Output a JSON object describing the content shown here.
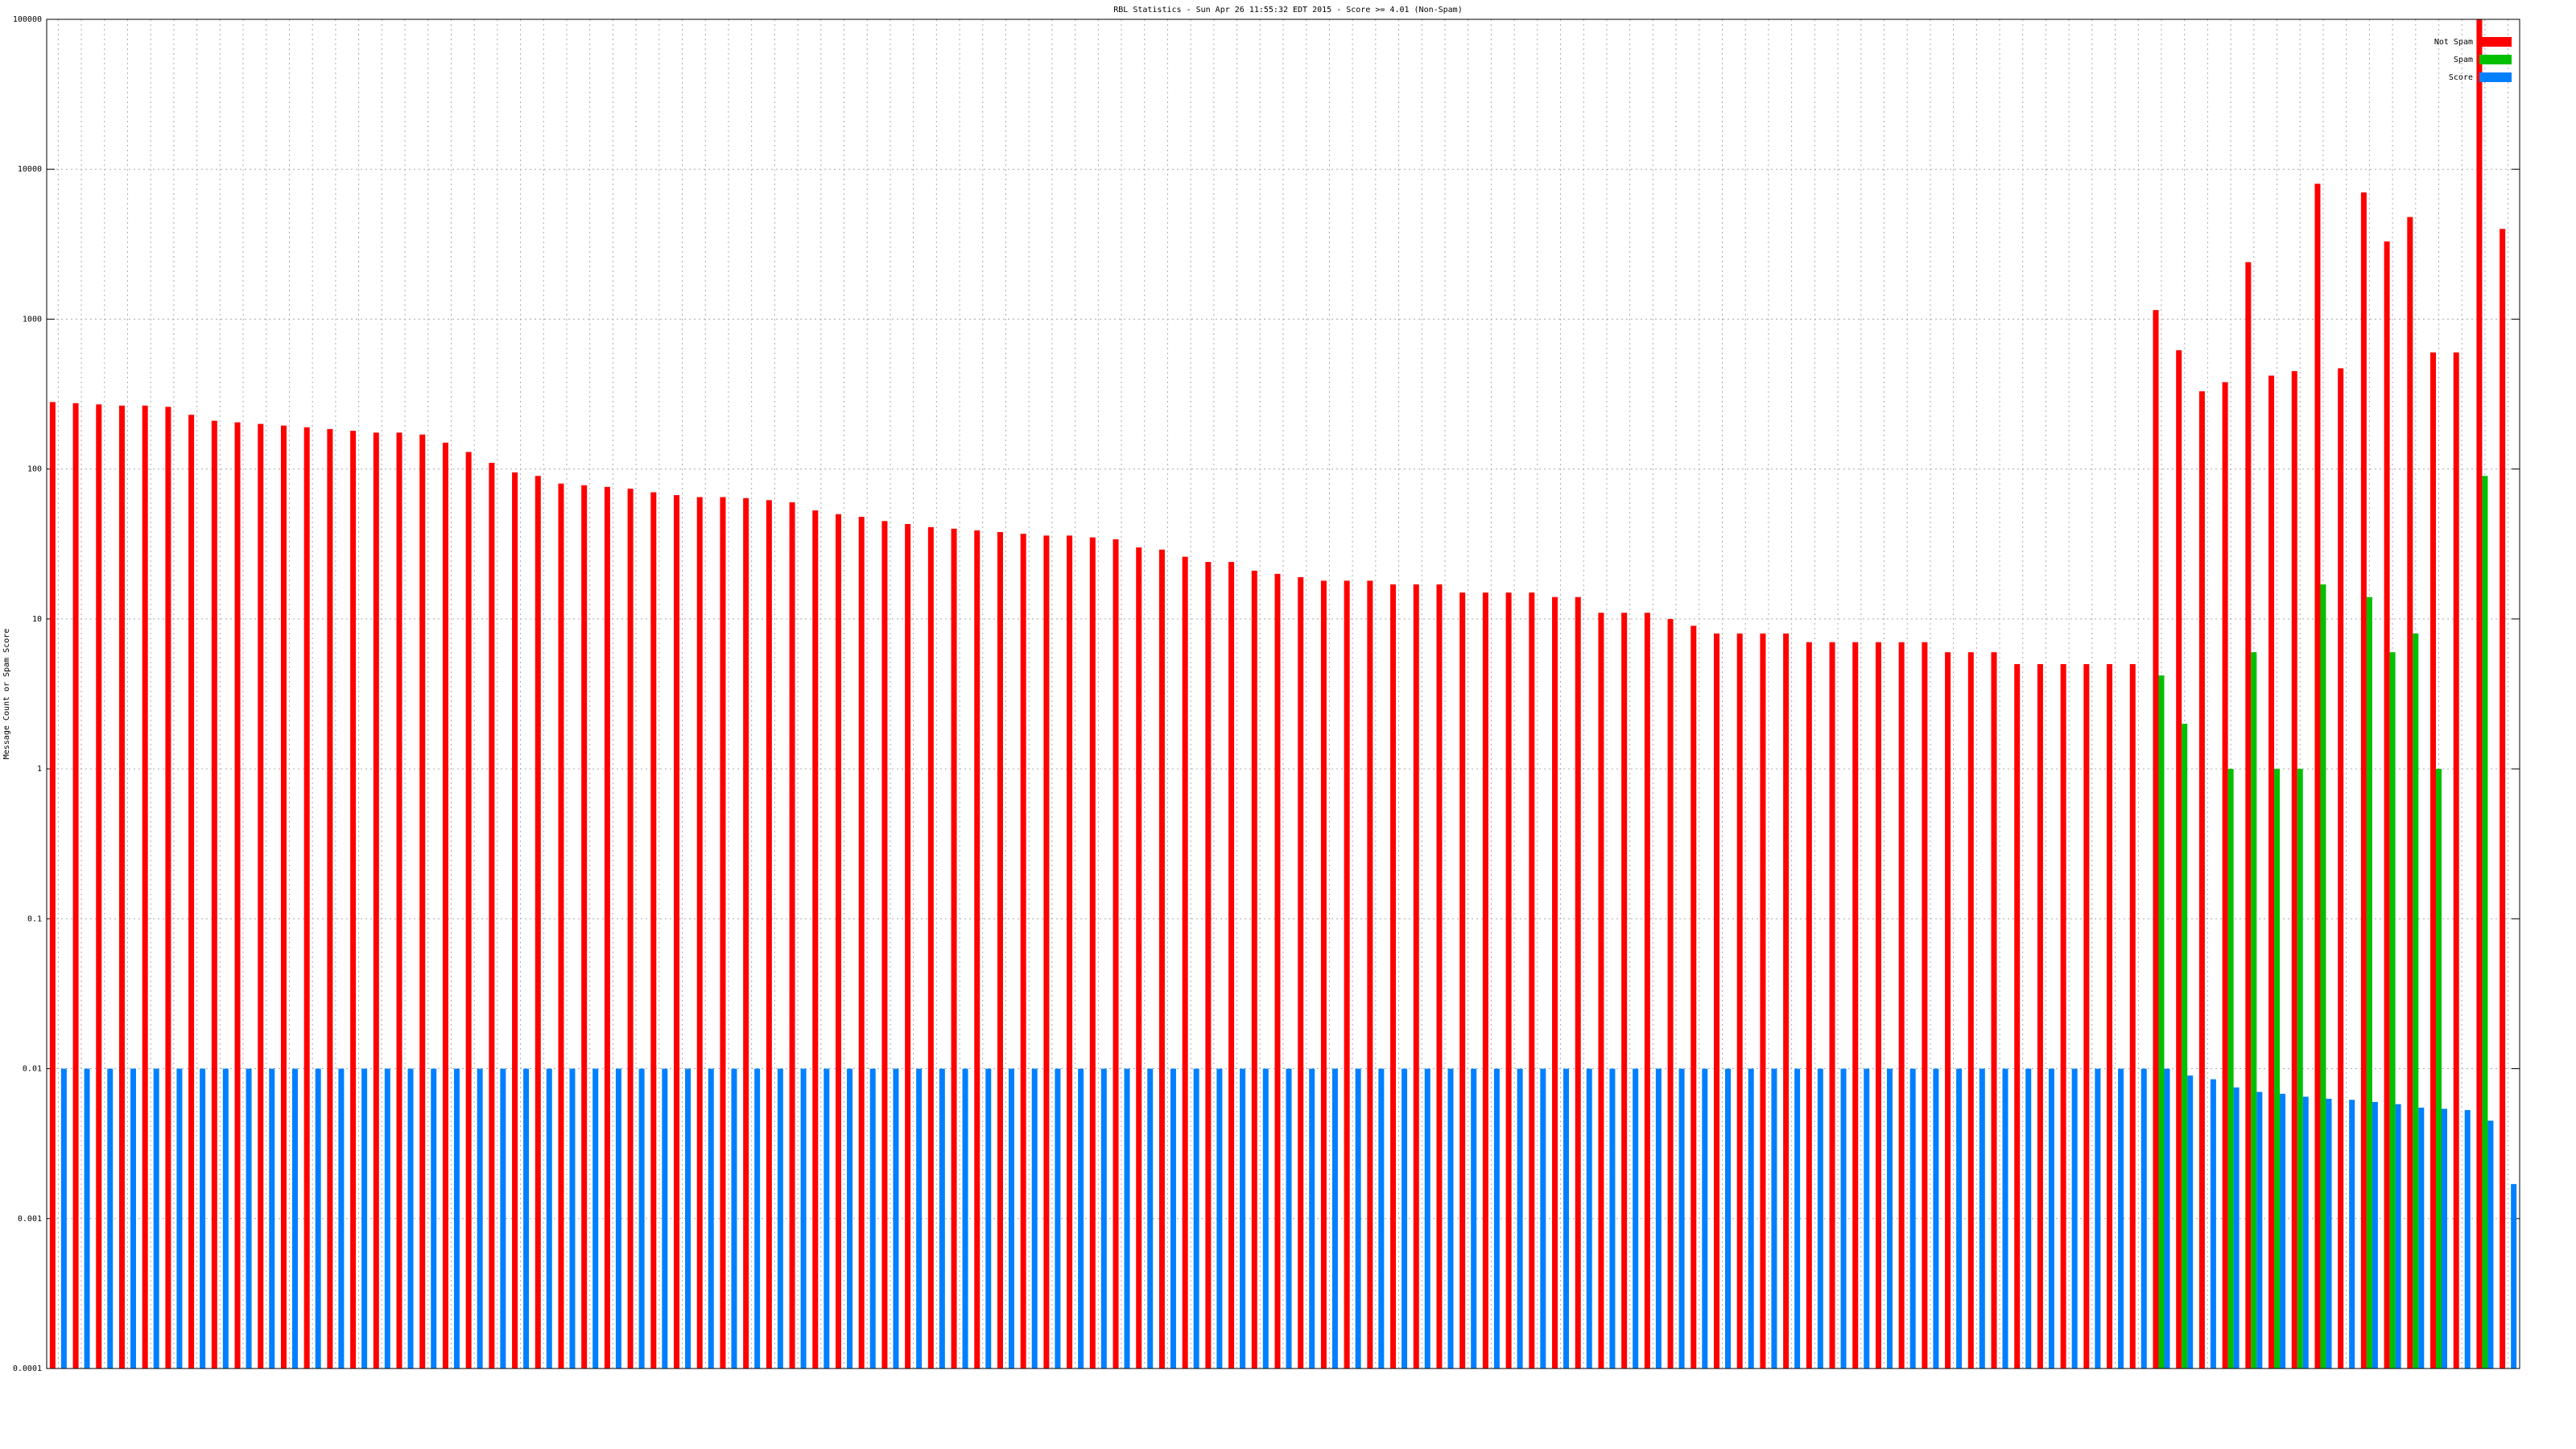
{
  "chart_data": {
    "type": "bar",
    "title": "RBL Statistics - Sun Apr 26 11:55:32 EDT 2015 - Score >= 4.01 (Non-Spam)",
    "ylabel": "Message Count or Spam Score",
    "log_scale": true,
    "grid": true,
    "legend": "upper right",
    "ylim": [
      0.0001,
      100000
    ],
    "yticks": [
      0.0001,
      0.001,
      0.01,
      0.1,
      1,
      10,
      100,
      1000,
      10000,
      100000
    ],
    "categories": [
      null,
      null,
      null,
      null,
      null,
      null,
      null,
      null,
      null,
      null,
      null,
      null,
      null,
      null,
      null,
      null,
      null,
      null,
      null,
      null,
      null,
      null,
      null,
      null,
      null,
      null,
      null,
      null,
      null,
      null,
      null,
      null,
      null,
      null,
      null,
      null,
      null,
      null,
      null,
      null,
      null,
      null,
      null,
      null,
      null,
      null,
      null,
      null,
      null,
      null,
      null,
      null,
      null,
      null,
      null,
      null,
      null,
      null,
      null,
      null,
      null,
      null,
      null,
      null,
      null,
      null,
      null,
      null,
      null,
      null,
      null,
      null,
      null,
      null,
      null,
      null,
      null,
      null,
      null,
      null,
      null,
      null,
      null,
      null,
      null,
      null,
      null,
      null,
      null,
      null,
      null,
      null,
      null,
      null,
      null,
      null,
      null,
      null,
      null,
      null,
      null,
      null,
      null,
      null,
      null,
      null,
      null
    ],
    "series": [
      {
        "name": "Not Spam",
        "color": "#ff0000",
        "values": [
          280,
          275,
          270,
          265,
          265,
          260,
          230,
          210,
          205,
          200,
          195,
          190,
          185,
          180,
          175,
          175,
          170,
          150,
          130,
          110,
          95,
          90,
          80,
          78,
          76,
          74,
          70,
          67,
          65,
          65,
          64,
          62,
          60,
          53,
          50,
          48,
          45,
          43,
          41,
          40,
          39,
          38,
          37,
          36,
          36,
          35,
          34,
          30,
          29,
          26,
          24,
          24,
          21,
          20,
          19,
          18,
          18,
          18,
          17,
          17,
          17,
          15,
          15,
          15,
          15,
          14,
          14,
          11,
          11,
          11,
          10,
          9,
          8,
          8,
          8,
          8,
          7,
          7,
          7,
          7,
          7,
          7,
          6,
          6,
          6,
          5,
          5,
          5,
          5,
          5,
          5,
          1150,
          620,
          330,
          380,
          2400,
          420,
          450,
          8000,
          470,
          7000,
          3300,
          4800,
          600,
          600,
          100000,
          4000
        ]
      },
      {
        "name": "Spam",
        "color": "#00c000",
        "values": [
          null,
          null,
          null,
          null,
          null,
          null,
          null,
          null,
          null,
          null,
          null,
          null,
          null,
          null,
          null,
          null,
          null,
          null,
          null,
          null,
          null,
          null,
          null,
          null,
          null,
          null,
          null,
          null,
          null,
          null,
          null,
          null,
          null,
          null,
          null,
          null,
          null,
          null,
          null,
          null,
          null,
          null,
          null,
          null,
          null,
          null,
          null,
          null,
          null,
          null,
          null,
          null,
          null,
          null,
          null,
          null,
          null,
          null,
          null,
          null,
          null,
          null,
          null,
          null,
          null,
          null,
          null,
          null,
          null,
          null,
          null,
          null,
          null,
          null,
          null,
          null,
          null,
          null,
          null,
          null,
          null,
          null,
          null,
          null,
          null,
          null,
          null,
          null,
          null,
          null,
          null,
          4.2,
          2,
          null,
          1,
          6,
          1,
          1,
          17,
          null,
          14,
          6,
          8,
          1,
          null,
          90,
          null
        ]
      },
      {
        "name": "Score",
        "color": "#0080ff",
        "values": [
          0.01,
          0.01,
          0.01,
          0.01,
          0.01,
          0.01,
          0.01,
          0.01,
          0.01,
          0.01,
          0.01,
          0.01,
          0.01,
          0.01,
          0.01,
          0.01,
          0.01,
          0.01,
          0.01,
          0.01,
          0.01,
          0.01,
          0.01,
          0.01,
          0.01,
          0.01,
          0.01,
          0.01,
          0.01,
          0.01,
          0.01,
          0.01,
          0.01,
          0.01,
          0.01,
          0.01,
          0.01,
          0.01,
          0.01,
          0.01,
          0.01,
          0.01,
          0.01,
          0.01,
          0.01,
          0.01,
          0.01,
          0.01,
          0.01,
          0.01,
          0.01,
          0.01,
          0.01,
          0.01,
          0.01,
          0.01,
          0.01,
          0.01,
          0.01,
          0.01,
          0.01,
          0.01,
          0.01,
          0.01,
          0.01,
          0.01,
          0.01,
          0.01,
          0.01,
          0.01,
          0.01,
          0.01,
          0.01,
          0.01,
          0.01,
          0.01,
          0.01,
          0.01,
          0.01,
          0.01,
          0.01,
          0.01,
          0.01,
          0.01,
          0.01,
          0.01,
          0.01,
          0.01,
          0.01,
          0.01,
          0.01,
          0.01,
          0.009,
          0.0085,
          0.0075,
          0.007,
          0.0068,
          0.0065,
          0.0063,
          0.0062,
          0.006,
          0.0058,
          0.0055,
          0.0054,
          0.0053,
          0.0045,
          0.0017
        ]
      }
    ]
  }
}
